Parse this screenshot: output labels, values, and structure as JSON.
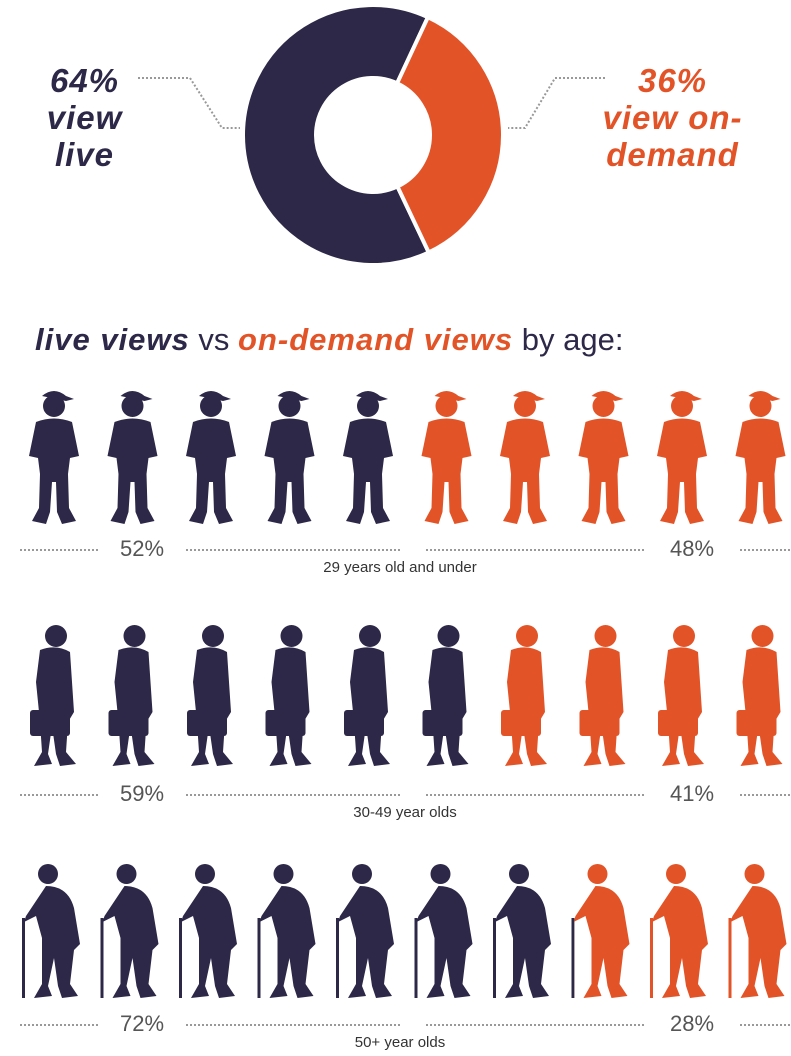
{
  "chart_data": [
    {
      "type": "pie",
      "categories": [
        "view live",
        "view on-demand"
      ],
      "values": [
        64,
        36
      ],
      "value_labels": [
        "64%",
        "36%"
      ],
      "colors": [
        "#2d2748",
        "#e25427"
      ],
      "hole": true
    },
    {
      "type": "pictogram",
      "title_parts": [
        "vs",
        "by age:"
      ],
      "categories": [
        "29 years old and under",
        "30-49 year olds",
        "50+ year olds"
      ],
      "series": [
        {
          "name": "live views",
          "color": "#2d2748",
          "values": [
            52,
            59,
            72
          ],
          "value_labels": [
            "52%",
            "59%",
            "72%"
          ]
        },
        {
          "name": "on-demand views",
          "color": "#e25427",
          "values": [
            48,
            41,
            28
          ],
          "value_labels": [
            "48%",
            "41%",
            "28%"
          ]
        }
      ]
    }
  ]
}
